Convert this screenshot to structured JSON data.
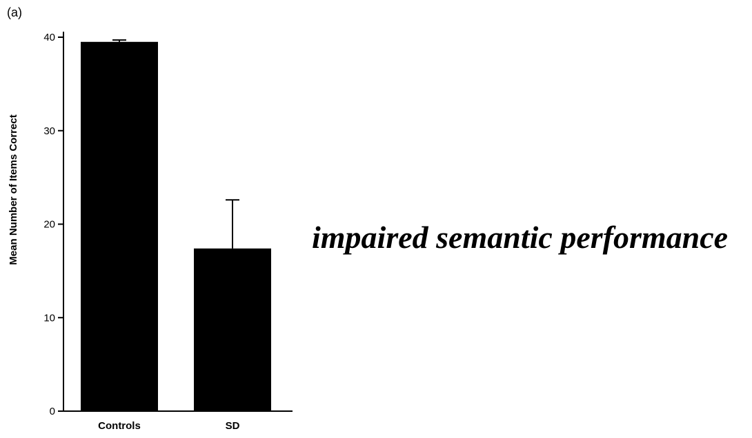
{
  "panel_label": "(a)",
  "annotation": "impaired semantic performance",
  "chart_data": {
    "type": "bar",
    "title": "",
    "xlabel": "",
    "ylabel": "Mean Number of Items Correct",
    "categories": [
      "Controls",
      "SD"
    ],
    "values": [
      39.5,
      17.4
    ],
    "error_bars_upper": [
      0.2,
      5.2
    ],
    "ylim": [
      0,
      40
    ],
    "yticks": [
      0,
      10,
      20,
      30,
      40
    ],
    "grid": false,
    "legend": "none",
    "bar_color": "#000000"
  }
}
